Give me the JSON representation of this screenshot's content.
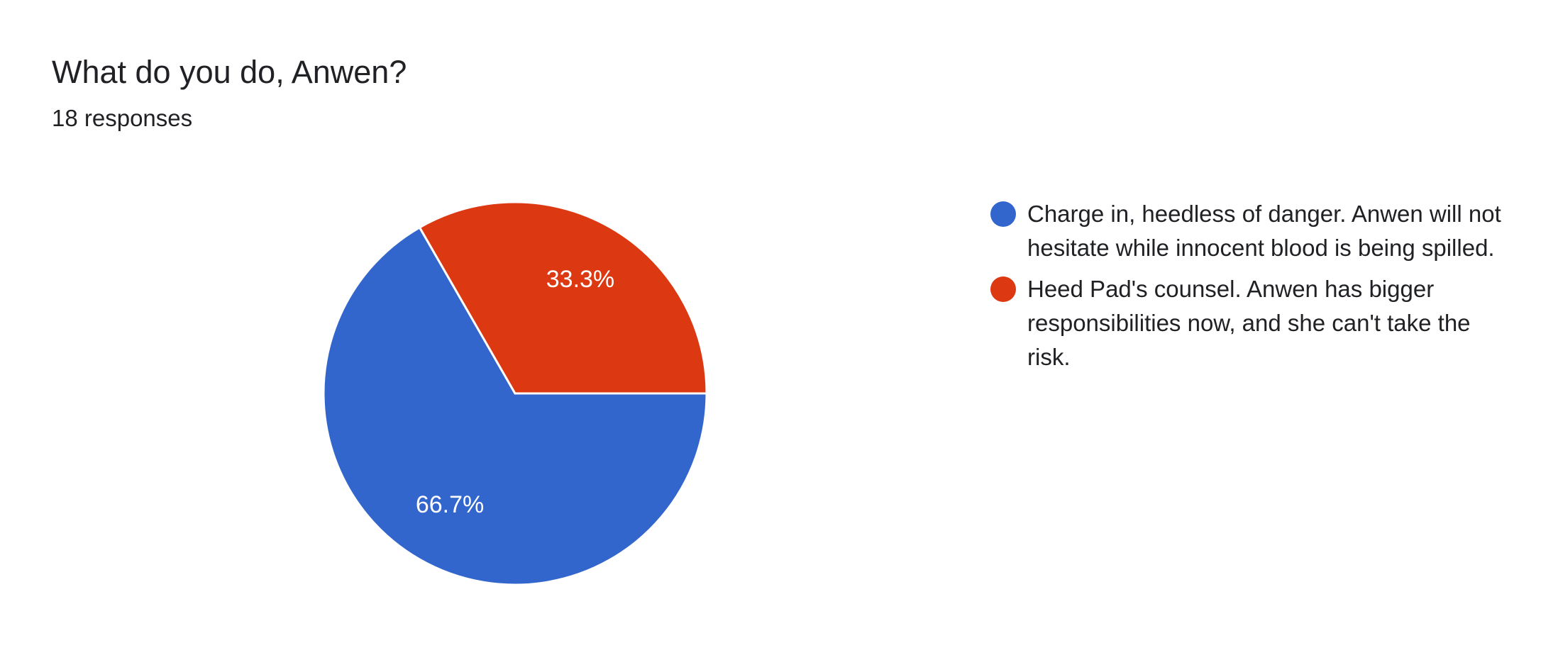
{
  "chart_data": {
    "type": "pie",
    "title": "What do you do, Anwen?",
    "subtitle": "18 responses",
    "categories": [
      "Charge in, heedless of danger. Anwen will not hesitate while innocent blood is being spilled.",
      "Heed Pad's counsel. Anwen has bigger responsibilities now, and she can't take the risk."
    ],
    "values": [
      66.7,
      33.3
    ],
    "value_labels": [
      "66.7%",
      "33.3%"
    ],
    "colors": [
      "#3366cc",
      "#dc3912"
    ]
  }
}
